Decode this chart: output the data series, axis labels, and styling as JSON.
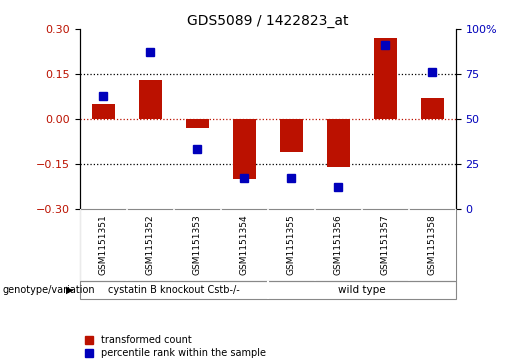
{
  "title": "GDS5089 / 1422823_at",
  "samples": [
    "GSM1151351",
    "GSM1151352",
    "GSM1151353",
    "GSM1151354",
    "GSM1151355",
    "GSM1151356",
    "GSM1151357",
    "GSM1151358"
  ],
  "red_values": [
    0.05,
    0.13,
    -0.03,
    -0.2,
    -0.11,
    -0.16,
    0.27,
    0.07
  ],
  "blue_values": [
    63,
    87,
    33,
    17,
    17,
    12,
    91,
    76
  ],
  "ylim_left": [
    -0.3,
    0.3
  ],
  "ylim_right": [
    0,
    100
  ],
  "yticks_left": [
    -0.3,
    -0.15,
    0,
    0.15,
    0.3
  ],
  "yticks_right": [
    0,
    25,
    50,
    75,
    100
  ],
  "red_color": "#bb1100",
  "blue_color": "#0000bb",
  "group1_label": "cystatin B knockout Cstb-/-",
  "group2_label": "wild type",
  "group1_samples": [
    0,
    1,
    2,
    3
  ],
  "group2_samples": [
    4,
    5,
    6,
    7
  ],
  "group_color": "#55dd55",
  "legend_red": "transformed count",
  "legend_blue": "percentile rank within the sample",
  "genotype_label": "genotype/variation",
  "bar_width": 0.5,
  "blue_marker_size": 6,
  "label_bg": "#cccccc"
}
